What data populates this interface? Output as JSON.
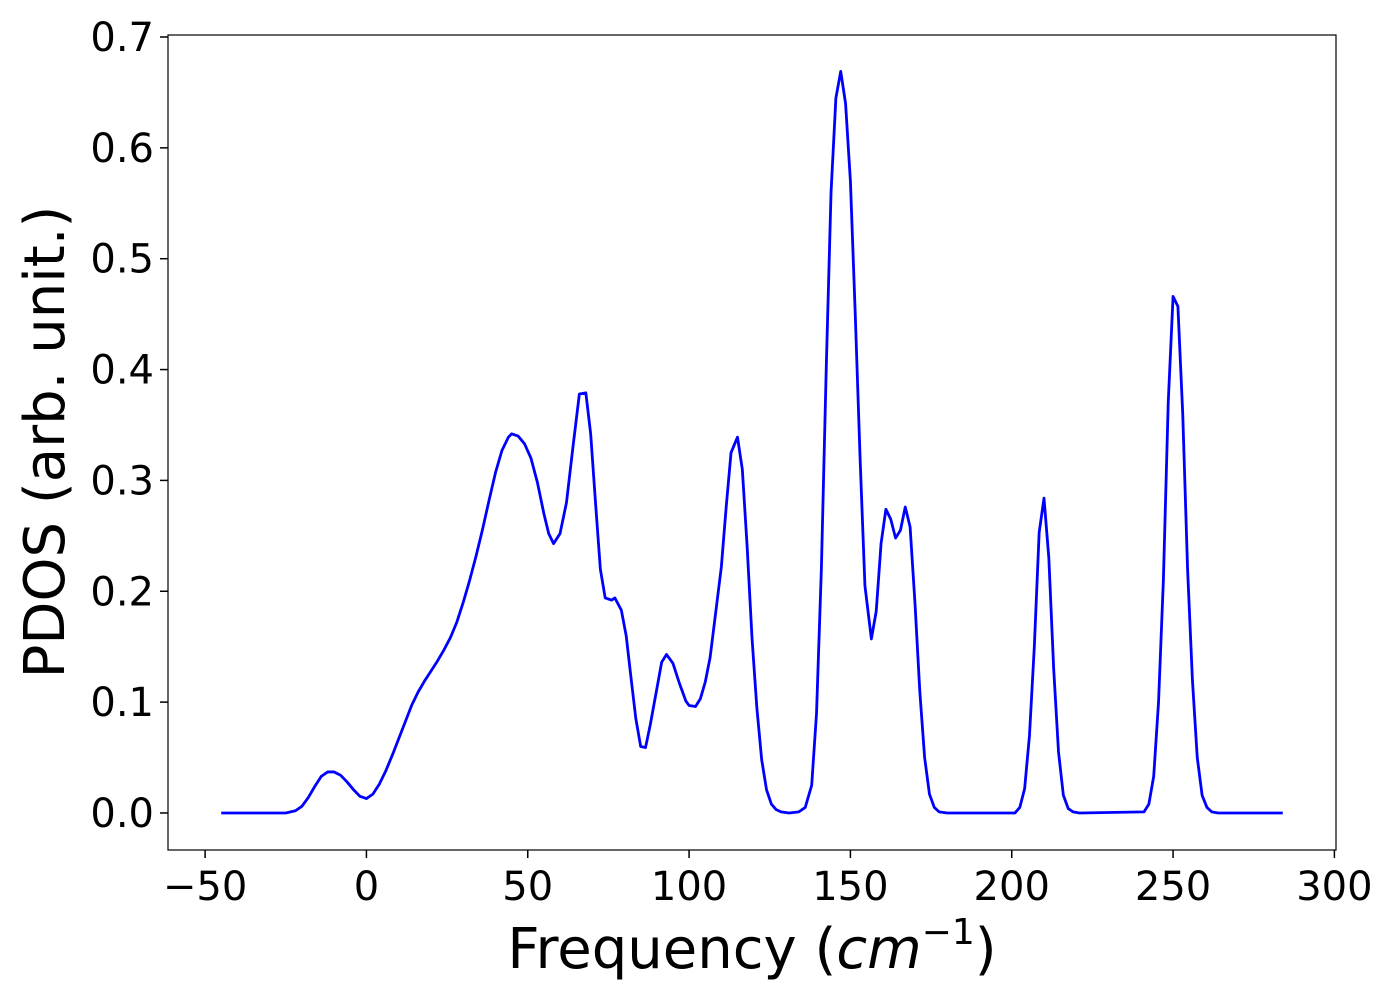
{
  "chart_data": {
    "type": "line",
    "xlabel": [
      "Frequency (",
      "cm",
      "−1",
      ")"
    ],
    "ylabel": "PDOS (arb. unit.)",
    "color": "#0000ff",
    "xlim": [
      -61.5,
      300.5
    ],
    "ylim": [
      -0.0334,
      0.7018
    ],
    "xticks": [
      {
        "value": -50,
        "label": "−50"
      },
      0,
      50,
      100,
      150,
      200,
      250,
      300
    ],
    "yticks": [
      {
        "value": 0,
        "label": "0.0"
      },
      0.1,
      0.2,
      0.3,
      0.4,
      0.5,
      0.6,
      0.7
    ],
    "x": [
      -45,
      -25,
      -22,
      -20,
      -18,
      -16,
      -14,
      -12,
      -10,
      -8,
      -6,
      -4,
      -2,
      0,
      2,
      4,
      6,
      8,
      10,
      12,
      14,
      16,
      18,
      20,
      22,
      24,
      26,
      28,
      30,
      32,
      34,
      36,
      38,
      40,
      42,
      44,
      45,
      47,
      49,
      51,
      53,
      55,
      56.5,
      58,
      60,
      62,
      64,
      66,
      68,
      69.5,
      71,
      72.5,
      74,
      76,
      77,
      79,
      80.5,
      82,
      83.5,
      85,
      86.5,
      88,
      90,
      91.5,
      93,
      95,
      97,
      99,
      100,
      102,
      103.5,
      105,
      106.5,
      108,
      110,
      111.5,
      113,
      115,
      116.5,
      118,
      119.5,
      121,
      122.5,
      124,
      125.5,
      127,
      128.5,
      131,
      134,
      136,
      138,
      139.5,
      141,
      142.5,
      144,
      145.5,
      147,
      148.5,
      150,
      151.5,
      153,
      154.5,
      156.5,
      158,
      159.5,
      161,
      162.5,
      164,
      165.5,
      167,
      168.5,
      170,
      171.5,
      173,
      174.5,
      176,
      177.5,
      180,
      201,
      202.5,
      204,
      205.5,
      207,
      208.5,
      210,
      211.5,
      213,
      214.5,
      216,
      217.5,
      219,
      221,
      241,
      242.5,
      244,
      245.5,
      247,
      248.5,
      250,
      251.5,
      253,
      254.5,
      256,
      257.5,
      259,
      260.5,
      262,
      264,
      284
    ],
    "values": [
      0,
      0,
      0.002,
      0.006,
      0.014,
      0.024,
      0.033,
      0.037,
      0.037,
      0.034,
      0.028,
      0.021,
      0.015,
      0.013,
      0.017,
      0.026,
      0.038,
      0.052,
      0.067,
      0.082,
      0.097,
      0.109,
      0.119,
      0.128,
      0.137,
      0.147,
      0.158,
      0.172,
      0.19,
      0.21,
      0.232,
      0.256,
      0.282,
      0.307,
      0.327,
      0.339,
      0.342,
      0.34,
      0.333,
      0.32,
      0.298,
      0.27,
      0.252,
      0.243,
      0.252,
      0.28,
      0.33,
      0.378,
      0.379,
      0.342,
      0.28,
      0.22,
      0.194,
      0.192,
      0.194,
      0.183,
      0.16,
      0.122,
      0.085,
      0.06,
      0.059,
      0.08,
      0.112,
      0.136,
      0.143,
      0.135,
      0.117,
      0.101,
      0.097,
      0.096,
      0.103,
      0.118,
      0.14,
      0.175,
      0.222,
      0.276,
      0.325,
      0.339,
      0.31,
      0.24,
      0.158,
      0.095,
      0.048,
      0.021,
      0.008,
      0.003,
      0.001,
      0,
      0.001,
      0.005,
      0.025,
      0.09,
      0.22,
      0.4,
      0.56,
      0.645,
      0.669,
      0.64,
      0.57,
      0.45,
      0.32,
      0.205,
      0.157,
      0.182,
      0.243,
      0.274,
      0.265,
      0.248,
      0.255,
      0.276,
      0.258,
      0.19,
      0.11,
      0.05,
      0.017,
      0.005,
      0.001,
      0,
      0,
      0.005,
      0.022,
      0.07,
      0.15,
      0.253,
      0.284,
      0.23,
      0.13,
      0.055,
      0.016,
      0.004,
      0.001,
      0,
      0.001,
      0.008,
      0.033,
      0.1,
      0.21,
      0.37,
      0.466,
      0.457,
      0.36,
      0.22,
      0.12,
      0.05,
      0.016,
      0.005,
      0.001,
      0,
      0
    ]
  }
}
